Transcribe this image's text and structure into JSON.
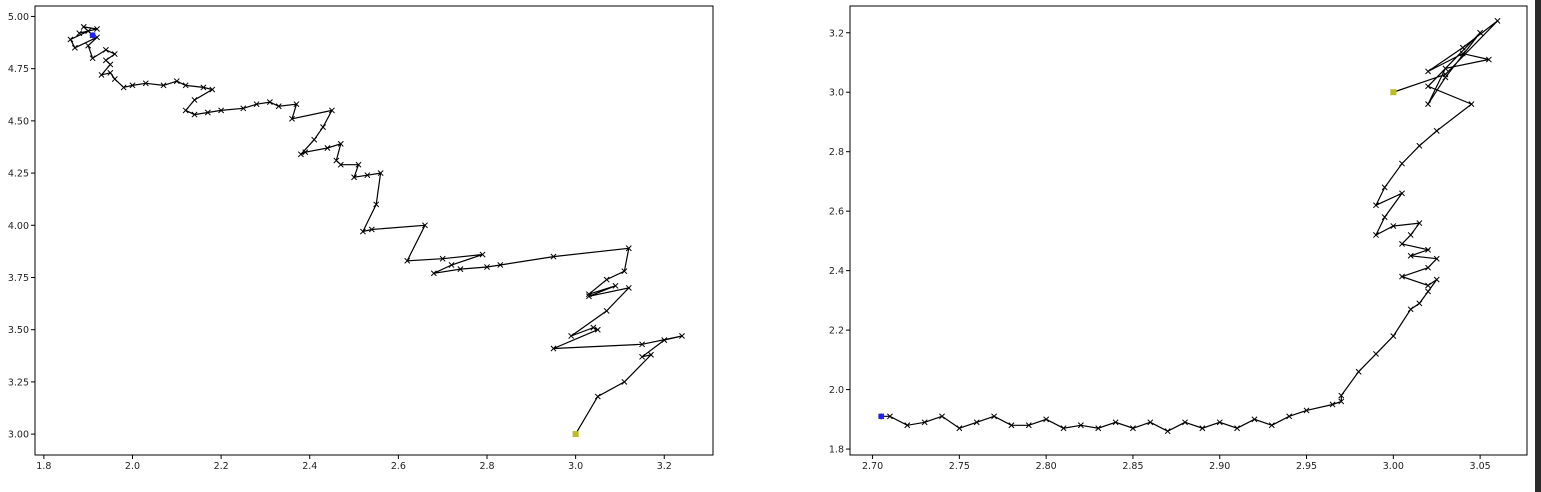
{
  "chart_data": [
    {
      "type": "line",
      "xlim": [
        1.78,
        3.31
      ],
      "ylim": [
        2.9,
        5.05
      ],
      "x_ticks": [
        1.8,
        2.0,
        2.2,
        2.4,
        2.6,
        2.8,
        3.0,
        3.2
      ],
      "y_ticks": [
        3.0,
        3.25,
        3.5,
        3.75,
        4.0,
        4.25,
        4.5,
        4.75,
        5.0
      ],
      "x_tick_labels": [
        "1.8",
        "2.0",
        "2.2",
        "2.4",
        "2.6",
        "2.8",
        "3.0",
        "3.2"
      ],
      "y_tick_labels": [
        "3.00",
        "3.25",
        "3.50",
        "3.75",
        "4.00",
        "4.25",
        "4.50",
        "4.75",
        "5.00"
      ],
      "grid": false,
      "start_point": {
        "x": 3.0,
        "y": 3.0
      },
      "end_point": {
        "x": 1.91,
        "y": 4.91
      },
      "colors": {
        "path": "#000000",
        "start": "#bdbd22",
        "end": "#1f1fff"
      },
      "path": [
        [
          3.0,
          3.0
        ],
        [
          3.05,
          3.18
        ],
        [
          3.11,
          3.25
        ],
        [
          3.17,
          3.38
        ],
        [
          3.15,
          3.37
        ],
        [
          3.2,
          3.45
        ],
        [
          3.24,
          3.47
        ],
        [
          3.15,
          3.43
        ],
        [
          2.95,
          3.41
        ],
        [
          3.05,
          3.5
        ],
        [
          3.04,
          3.51
        ],
        [
          2.99,
          3.47
        ],
        [
          3.07,
          3.59
        ],
        [
          3.12,
          3.7
        ],
        [
          3.03,
          3.66
        ],
        [
          3.09,
          3.71
        ],
        [
          3.03,
          3.67
        ],
        [
          3.07,
          3.74
        ],
        [
          3.11,
          3.78
        ],
        [
          3.12,
          3.89
        ],
        [
          2.95,
          3.85
        ],
        [
          2.83,
          3.81
        ],
        [
          2.8,
          3.8
        ],
        [
          2.74,
          3.79
        ],
        [
          2.68,
          3.77
        ],
        [
          2.72,
          3.81
        ],
        [
          2.79,
          3.86
        ],
        [
          2.7,
          3.84
        ],
        [
          2.62,
          3.83
        ],
        [
          2.66,
          4.0
        ],
        [
          2.54,
          3.98
        ],
        [
          2.52,
          3.97
        ],
        [
          2.55,
          4.1
        ],
        [
          2.56,
          4.25
        ],
        [
          2.53,
          4.24
        ],
        [
          2.5,
          4.23
        ],
        [
          2.51,
          4.29
        ],
        [
          2.47,
          4.29
        ],
        [
          2.46,
          4.31
        ],
        [
          2.47,
          4.39
        ],
        [
          2.44,
          4.37
        ],
        [
          2.39,
          4.35
        ],
        [
          2.38,
          4.34
        ],
        [
          2.41,
          4.41
        ],
        [
          2.43,
          4.47
        ],
        [
          2.45,
          4.55
        ],
        [
          2.36,
          4.51
        ],
        [
          2.37,
          4.58
        ],
        [
          2.33,
          4.57
        ],
        [
          2.31,
          4.59
        ],
        [
          2.28,
          4.58
        ],
        [
          2.25,
          4.56
        ],
        [
          2.2,
          4.55
        ],
        [
          2.17,
          4.54
        ],
        [
          2.14,
          4.53
        ],
        [
          2.12,
          4.55
        ],
        [
          2.14,
          4.6
        ],
        [
          2.18,
          4.65
        ],
        [
          2.16,
          4.66
        ],
        [
          2.12,
          4.67
        ],
        [
          2.1,
          4.69
        ],
        [
          2.07,
          4.67
        ],
        [
          2.03,
          4.68
        ],
        [
          2.0,
          4.67
        ],
        [
          1.98,
          4.66
        ],
        [
          1.96,
          4.7
        ],
        [
          1.95,
          4.73
        ],
        [
          1.93,
          4.72
        ],
        [
          1.95,
          4.77
        ],
        [
          1.94,
          4.79
        ],
        [
          1.96,
          4.82
        ],
        [
          1.94,
          4.84
        ],
        [
          1.91,
          4.8
        ],
        [
          1.9,
          4.86
        ],
        [
          1.92,
          4.9
        ],
        [
          1.87,
          4.85
        ],
        [
          1.86,
          4.89
        ],
        [
          1.9,
          4.93
        ],
        [
          1.88,
          4.92
        ],
        [
          1.92,
          4.94
        ],
        [
          1.89,
          4.95
        ],
        [
          1.91,
          4.91
        ]
      ]
    },
    {
      "type": "line",
      "xlim": [
        2.687,
        3.077
      ],
      "ylim": [
        1.78,
        3.29
      ],
      "x_ticks": [
        2.7,
        2.75,
        2.8,
        2.85,
        2.9,
        2.95,
        3.0,
        3.05
      ],
      "y_ticks": [
        1.8,
        2.0,
        2.2,
        2.4,
        2.6,
        2.8,
        3.0,
        3.2
      ],
      "x_tick_labels": [
        "2.70",
        "2.75",
        "2.80",
        "2.85",
        "2.90",
        "2.95",
        "3.00",
        "3.05"
      ],
      "y_tick_labels": [
        "1.8",
        "2.0",
        "2.2",
        "2.4",
        "2.6",
        "2.8",
        "3.0",
        "3.2"
      ],
      "grid": false,
      "start_point": {
        "x": 3.0,
        "y": 3.0
      },
      "end_point": {
        "x": 2.705,
        "y": 1.91
      },
      "colors": {
        "path": "#000000",
        "start": "#bdbd22",
        "end": "#1f1fff"
      },
      "path": [
        [
          3.0,
          3.0
        ],
        [
          3.03,
          3.06
        ],
        [
          3.06,
          3.24
        ],
        [
          3.04,
          3.15
        ],
        [
          3.02,
          3.07
        ],
        [
          3.04,
          3.13
        ],
        [
          3.055,
          3.11
        ],
        [
          3.03,
          3.08
        ],
        [
          3.02,
          2.96
        ],
        [
          3.03,
          3.05
        ],
        [
          3.05,
          3.2
        ],
        [
          3.02,
          3.02
        ],
        [
          3.045,
          2.96
        ],
        [
          3.025,
          2.87
        ],
        [
          3.015,
          2.82
        ],
        [
          3.005,
          2.76
        ],
        [
          2.995,
          2.68
        ],
        [
          2.99,
          2.62
        ],
        [
          3.005,
          2.66
        ],
        [
          2.995,
          2.58
        ],
        [
          2.99,
          2.52
        ],
        [
          3.0,
          2.55
        ],
        [
          3.015,
          2.56
        ],
        [
          3.01,
          2.52
        ],
        [
          3.005,
          2.49
        ],
        [
          3.02,
          2.47
        ],
        [
          3.01,
          2.45
        ],
        [
          3.025,
          2.44
        ],
        [
          3.02,
          2.41
        ],
        [
          3.005,
          2.38
        ],
        [
          3.02,
          2.35
        ],
        [
          3.025,
          2.37
        ],
        [
          3.02,
          2.33
        ],
        [
          3.015,
          2.29
        ],
        [
          3.01,
          2.27
        ],
        [
          3.0,
          2.18
        ],
        [
          2.99,
          2.12
        ],
        [
          2.98,
          2.06
        ],
        [
          2.97,
          1.98
        ],
        [
          2.97,
          1.96
        ],
        [
          2.965,
          1.95
        ],
        [
          2.95,
          1.93
        ],
        [
          2.94,
          1.91
        ],
        [
          2.93,
          1.88
        ],
        [
          2.92,
          1.9
        ],
        [
          2.91,
          1.87
        ],
        [
          2.9,
          1.89
        ],
        [
          2.89,
          1.87
        ],
        [
          2.88,
          1.89
        ],
        [
          2.87,
          1.86
        ],
        [
          2.86,
          1.89
        ],
        [
          2.85,
          1.87
        ],
        [
          2.84,
          1.89
        ],
        [
          2.83,
          1.87
        ],
        [
          2.82,
          1.88
        ],
        [
          2.81,
          1.87
        ],
        [
          2.8,
          1.9
        ],
        [
          2.79,
          1.88
        ],
        [
          2.78,
          1.88
        ],
        [
          2.77,
          1.91
        ],
        [
          2.76,
          1.89
        ],
        [
          2.75,
          1.87
        ],
        [
          2.74,
          1.91
        ],
        [
          2.73,
          1.89
        ],
        [
          2.72,
          1.88
        ],
        [
          2.71,
          1.91
        ],
        [
          2.705,
          1.91
        ]
      ]
    }
  ]
}
